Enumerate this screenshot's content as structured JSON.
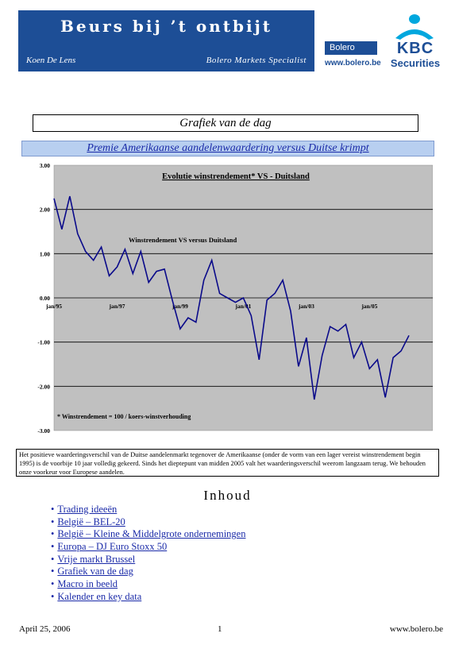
{
  "header": {
    "title": "Beurs bij ’t ontbijt",
    "author": "Koen De Lens",
    "role": "Bolero Markets Specialist",
    "bolero_logo": "Bolero",
    "bolero_url": "www.bolero.be",
    "kbc_logo": "KBC",
    "kbc_sub": "Securities"
  },
  "section_title": "Grafiek van de dag",
  "chart_heading": "Premie Amerikaanse aandelenwaardering versus Duitse krimpt",
  "chart_data": {
    "type": "line",
    "title": "Evolutie winstrendement* VS - Duitsland",
    "series": [
      {
        "name": "Winstrendement VS versus Duitsland",
        "x": [
          "jan/95",
          "apr/95",
          "jul/95",
          "okt/95",
          "jan/96",
          "apr/96",
          "jul/96",
          "okt/96",
          "jan/97",
          "apr/97",
          "jul/97",
          "okt/97",
          "jan/98",
          "apr/98",
          "jul/98",
          "okt/98",
          "jan/99",
          "apr/99",
          "jul/99",
          "okt/99",
          "jan/00",
          "apr/00",
          "jul/00",
          "okt/00",
          "jan/01",
          "apr/01",
          "jul/01",
          "okt/01",
          "jan/02",
          "apr/02",
          "jul/02",
          "okt/02",
          "jan/03",
          "apr/03",
          "jul/03",
          "okt/03",
          "jan/04",
          "apr/04",
          "jul/04",
          "okt/04",
          "jan/05",
          "apr/05",
          "jul/05",
          "okt/05",
          "jan/06",
          "apr/06"
        ],
        "values": [
          2.25,
          1.55,
          2.3,
          1.45,
          1.05,
          0.85,
          1.15,
          0.5,
          0.7,
          1.1,
          0.55,
          1.05,
          0.35,
          0.6,
          0.65,
          -0.05,
          -0.7,
          -0.45,
          -0.55,
          0.4,
          0.85,
          0.1,
          0.0,
          -0.1,
          0.0,
          -0.4,
          -1.4,
          -0.05,
          0.1,
          0.4,
          -0.3,
          -1.55,
          -0.9,
          -2.3,
          -1.3,
          -0.65,
          -0.75,
          -0.6,
          -1.35,
          -1.0,
          -1.6,
          -1.4,
          -2.25,
          -1.35,
          -1.2,
          -0.85
        ]
      }
    ],
    "xticks": [
      "jan/95",
      "jan/97",
      "jan/99",
      "jan/01",
      "jan/03",
      "jan/05"
    ],
    "yticks": [
      "3.00",
      "2.00",
      "1.00",
      "0.00",
      "-1.00",
      "-2.00",
      "-3.00"
    ],
    "ylim": [
      -3,
      3
    ],
    "annotation": "* Winstrendement = 100 / koers-winstverhouding",
    "grid": "horizontal",
    "color": "#0a0a8a",
    "plot_bg": "#c0c0c0"
  },
  "caption": "Het positieve waarderingsverschil van de Duitse aandelenmarkt tegenover de Amerikaanse (onder de vorm van een lager vereist winstrendement begin 1995) is de voorbije 10 jaar volledig gekeerd. Sinds het dieptepunt van midden 2005 valt het waarderingsverschil weerom langzaam terug. We behouden onze voorkeur voor Europese aandelen.",
  "toc": {
    "heading": "Inhoud",
    "items": [
      "Trading ideeën",
      "België – BEL-20",
      "België – Kleine & Middelgrote ondernemingen",
      "Europa – DJ Euro Stoxx 50",
      "Vrije markt Brussel",
      "Grafiek van de dag",
      "Macro in beeld",
      "Kalender en key data"
    ]
  },
  "footer": {
    "date": "April 25, 2006",
    "page": "1",
    "url": "www.bolero.be"
  }
}
